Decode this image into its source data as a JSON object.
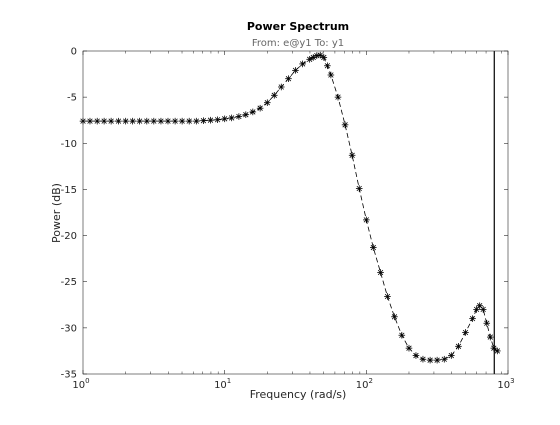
{
  "chart_data": {
    "type": "line",
    "title": "Power Spectrum",
    "subtitle": "From: e@y1  To: y1",
    "xlabel": "Frequency  (rad/s)",
    "ylabel": "Power (dB)",
    "xscale": "log",
    "xlim": [
      1,
      1000
    ],
    "ylim": [
      -35,
      0
    ],
    "xticks": [
      {
        "value": 1,
        "base": "10",
        "exp": "0"
      },
      {
        "value": 10,
        "base": "10",
        "exp": "1"
      },
      {
        "value": 100,
        "base": "10",
        "exp": "2"
      },
      {
        "value": 1000,
        "base": "10",
        "exp": "3"
      }
    ],
    "yticks": [
      0,
      -5,
      -10,
      -15,
      -20,
      -25,
      -30,
      -35
    ],
    "ytick_labels": [
      "0",
      "-5",
      "-10",
      "-15",
      "-20",
      "-25",
      "-30",
      "-35"
    ],
    "grid": false,
    "series": [
      {
        "color": "#000000",
        "line_style": "dashed",
        "marker": "asterisk",
        "x": [
          1.0,
          1.12,
          1.26,
          1.41,
          1.58,
          1.78,
          2.0,
          2.24,
          2.51,
          2.82,
          3.16,
          3.55,
          3.98,
          4.47,
          5.01,
          5.62,
          6.31,
          7.08,
          7.94,
          8.91,
          10.0,
          11.2,
          12.6,
          14.1,
          15.8,
          17.8,
          20.0,
          22.4,
          25.1,
          28.2,
          31.6,
          35.5,
          39.8,
          42.2,
          44.7,
          47.3,
          50.1,
          53.1,
          56.2,
          63.1,
          70.8,
          79.4,
          89.1,
          100.0,
          112.0,
          126.0,
          141.0,
          158.0,
          178.0,
          200.0,
          224.0,
          251.0,
          282.0,
          316.0,
          355.0,
          398.0,
          447.0,
          501.0,
          562.0,
          600.0,
          631.0,
          668.0,
          708.0,
          750.0,
          794.0,
          841.0
        ],
        "y": [
          -7.6,
          -7.6,
          -7.6,
          -7.6,
          -7.6,
          -7.6,
          -7.6,
          -7.6,
          -7.6,
          -7.6,
          -7.6,
          -7.6,
          -7.6,
          -7.6,
          -7.6,
          -7.6,
          -7.6,
          -7.55,
          -7.5,
          -7.45,
          -7.35,
          -7.25,
          -7.1,
          -6.9,
          -6.6,
          -6.2,
          -5.6,
          -4.8,
          -3.9,
          -3.0,
          -2.1,
          -1.4,
          -0.9,
          -0.7,
          -0.5,
          -0.45,
          -0.7,
          -1.6,
          -2.6,
          -5.0,
          -8.0,
          -11.3,
          -14.9,
          -18.3,
          -21.3,
          -24.0,
          -26.6,
          -28.8,
          -30.8,
          -32.2,
          -33.0,
          -33.4,
          -33.5,
          -33.5,
          -33.4,
          -33.0,
          -32.0,
          -30.5,
          -29.0,
          -28.0,
          -27.6,
          -28.0,
          -29.5,
          -31.0,
          -32.2,
          -32.5
        ]
      }
    ],
    "cursor_x": 800
  }
}
